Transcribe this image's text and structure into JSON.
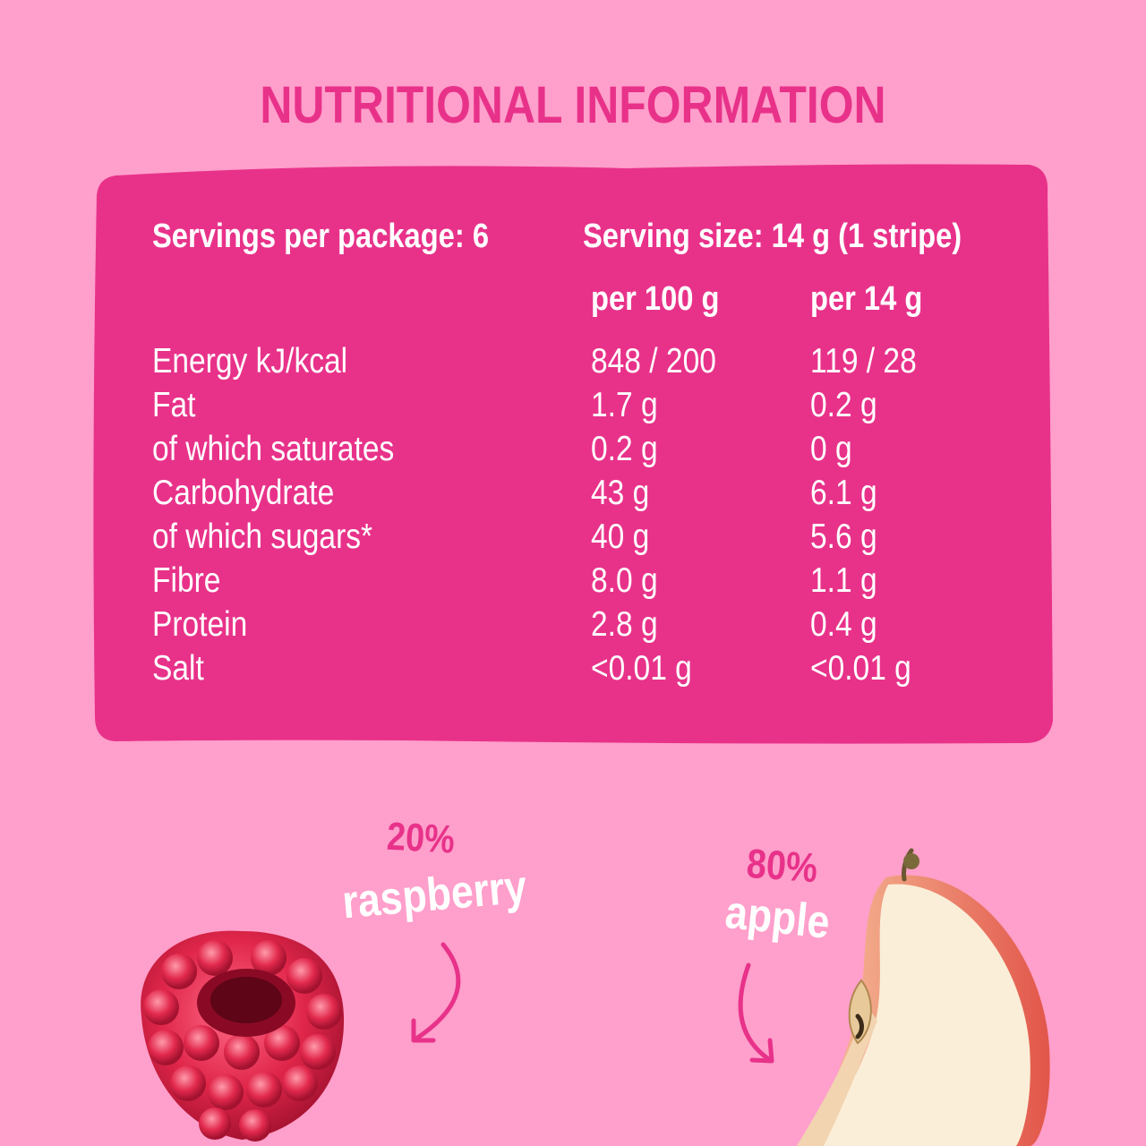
{
  "title": "NUTRITIONAL INFORMATION",
  "servings_per_package": "Servings per package: 6",
  "serving_size": "Serving size: 14 g (1 stripe)",
  "columns": {
    "per100": "per 100 g",
    "perServing": "per 14 g"
  },
  "rows": [
    {
      "label": "Energy kJ/kcal",
      "per100": "848 / 200",
      "perServing": "119 / 28"
    },
    {
      "label": "Fat",
      "per100": "1.7 g",
      "perServing": "0.2 g"
    },
    {
      "label": "of which saturates",
      "per100": "0.2 g",
      "perServing": "0 g"
    },
    {
      "label": "Carbohydrate",
      "per100": "43 g",
      "perServing": "6.1 g"
    },
    {
      "label": "of which sugars*",
      "per100": "40 g",
      "perServing": "5.6 g"
    },
    {
      "label": "Fibre",
      "per100": "8.0 g",
      "perServing": "1.1 g"
    },
    {
      "label": "Protein",
      "per100": "2.8 g",
      "perServing": "0.4 g"
    },
    {
      "label": "Salt",
      "per100": "<0.01 g",
      "perServing": "<0.01 g"
    }
  ],
  "ingredients": [
    {
      "percent": "20%",
      "name": "raspberry"
    },
    {
      "percent": "80%",
      "name": "apple"
    }
  ],
  "colors": {
    "background": "#ff9fcb",
    "panel": "#e8328a",
    "accent_text": "#e8328a",
    "text_light": "#ffffff"
  }
}
